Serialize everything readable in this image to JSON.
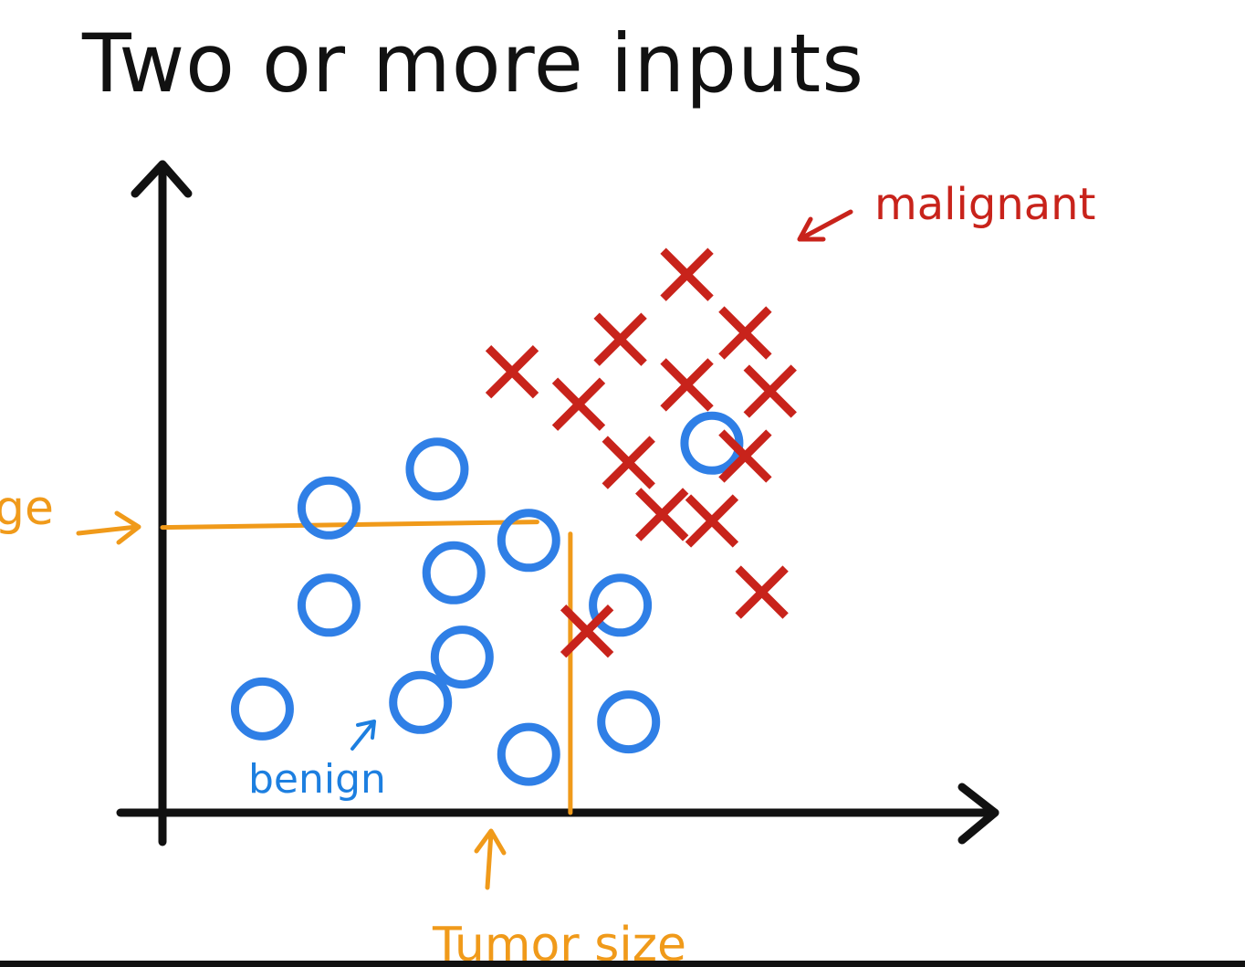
{
  "slide": {
    "title": "Two or more inputs"
  },
  "chart_data": {
    "type": "scatter",
    "title": "Two or more inputs",
    "xlabel": "Tumor size",
    "ylabel": "ge",
    "annotations": {
      "malignant": "malignant",
      "benign": "benign"
    },
    "xlim": [
      0,
      10
    ],
    "ylim": [
      0,
      10
    ],
    "grid": false,
    "colors": {
      "benign": "#2f7fe6",
      "malignant": "#c8231b",
      "threshold": "#f09a1a",
      "axis": "#111111"
    },
    "series": [
      {
        "marker": "o",
        "points": [
          [
            1.2,
            1.6
          ],
          [
            2.0,
            4.7
          ],
          [
            2.0,
            3.2
          ],
          [
            3.1,
            1.7
          ],
          [
            3.3,
            5.3
          ],
          [
            3.5,
            3.7
          ],
          [
            3.6,
            2.4
          ],
          [
            4.4,
            4.2
          ],
          [
            4.4,
            0.9
          ],
          [
            5.5,
            3.2
          ],
          [
            5.6,
            1.4
          ],
          [
            6.6,
            5.7
          ]
        ]
      },
      {
        "marker": "x",
        "points": [
          [
            4.2,
            6.8
          ],
          [
            5.0,
            6.3
          ],
          [
            5.5,
            7.3
          ],
          [
            5.6,
            5.4
          ],
          [
            5.1,
            2.8
          ],
          [
            6.3,
            8.3
          ],
          [
            6.3,
            6.6
          ],
          [
            7.0,
            7.4
          ],
          [
            7.3,
            6.5
          ],
          [
            7.0,
            5.5
          ],
          [
            6.0,
            4.6
          ],
          [
            6.6,
            4.5
          ],
          [
            7.2,
            3.4
          ]
        ]
      }
    ],
    "threshold_lines": [
      {
        "axis": "y",
        "value": 4.4,
        "from": 0,
        "to": 4.5
      },
      {
        "axis": "x",
        "value": 4.9,
        "from": 0,
        "to": 4.3
      }
    ]
  }
}
